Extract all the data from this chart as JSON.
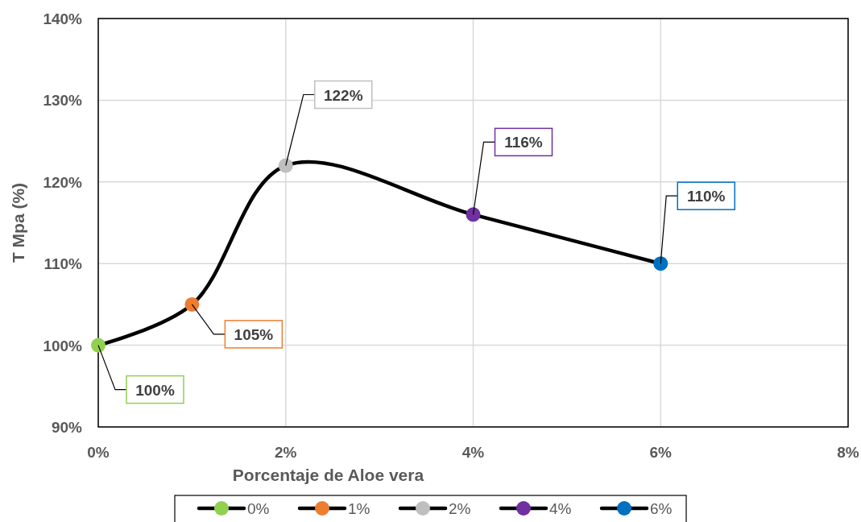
{
  "chart_data": {
    "type": "line",
    "xlabel": "Porcentaje de Aloe vera",
    "ylabel": "T Mpa (%)",
    "xlim": [
      0,
      8
    ],
    "xticks": [
      {
        "value": 0,
        "label": "0%"
      },
      {
        "value": 2,
        "label": "2%"
      },
      {
        "value": 4,
        "label": "4%"
      },
      {
        "value": 6,
        "label": "6%"
      },
      {
        "value": 8,
        "label": "8%"
      }
    ],
    "ylim": [
      90,
      140
    ],
    "yticks": [
      {
        "value": 90,
        "label": "90%"
      },
      {
        "value": 100,
        "label": "100%"
      },
      {
        "value": 110,
        "label": "110%"
      },
      {
        "value": 120,
        "label": "120%"
      },
      {
        "value": 130,
        "label": "130%"
      },
      {
        "value": 140,
        "label": "140%"
      }
    ],
    "grid": true,
    "legend": "bottom",
    "series": [
      {
        "color": "#000000",
        "x": [
          0,
          1,
          2,
          4,
          6
        ],
        "values": [
          100,
          105,
          122,
          116,
          110
        ],
        "marker": "none"
      },
      {
        "type": "scatter",
        "name": "0%",
        "color": "#92d050",
        "x": [
          0
        ],
        "values": [
          100
        ],
        "value_labels": [
          "100%"
        ],
        "marker": "circle"
      },
      {
        "type": "scatter",
        "name": "1%",
        "color": "#ed7d31",
        "x": [
          1
        ],
        "values": [
          105
        ],
        "value_labels": [
          "105%"
        ],
        "marker": "circle"
      },
      {
        "type": "scatter",
        "name": "2%",
        "color": "#bfbfbf",
        "x": [
          2
        ],
        "values": [
          122
        ],
        "value_labels": [
          "122%"
        ],
        "marker": "circle"
      },
      {
        "type": "scatter",
        "name": "4%",
        "color": "#7030a0",
        "x": [
          4
        ],
        "values": [
          116
        ],
        "value_labels": [
          "116%"
        ],
        "marker": "circle"
      },
      {
        "type": "scatter",
        "name": "6%",
        "color": "#0070c0",
        "x": [
          6
        ],
        "values": [
          110
        ],
        "value_labels": [
          "110%"
        ],
        "marker": "circle"
      }
    ]
  }
}
